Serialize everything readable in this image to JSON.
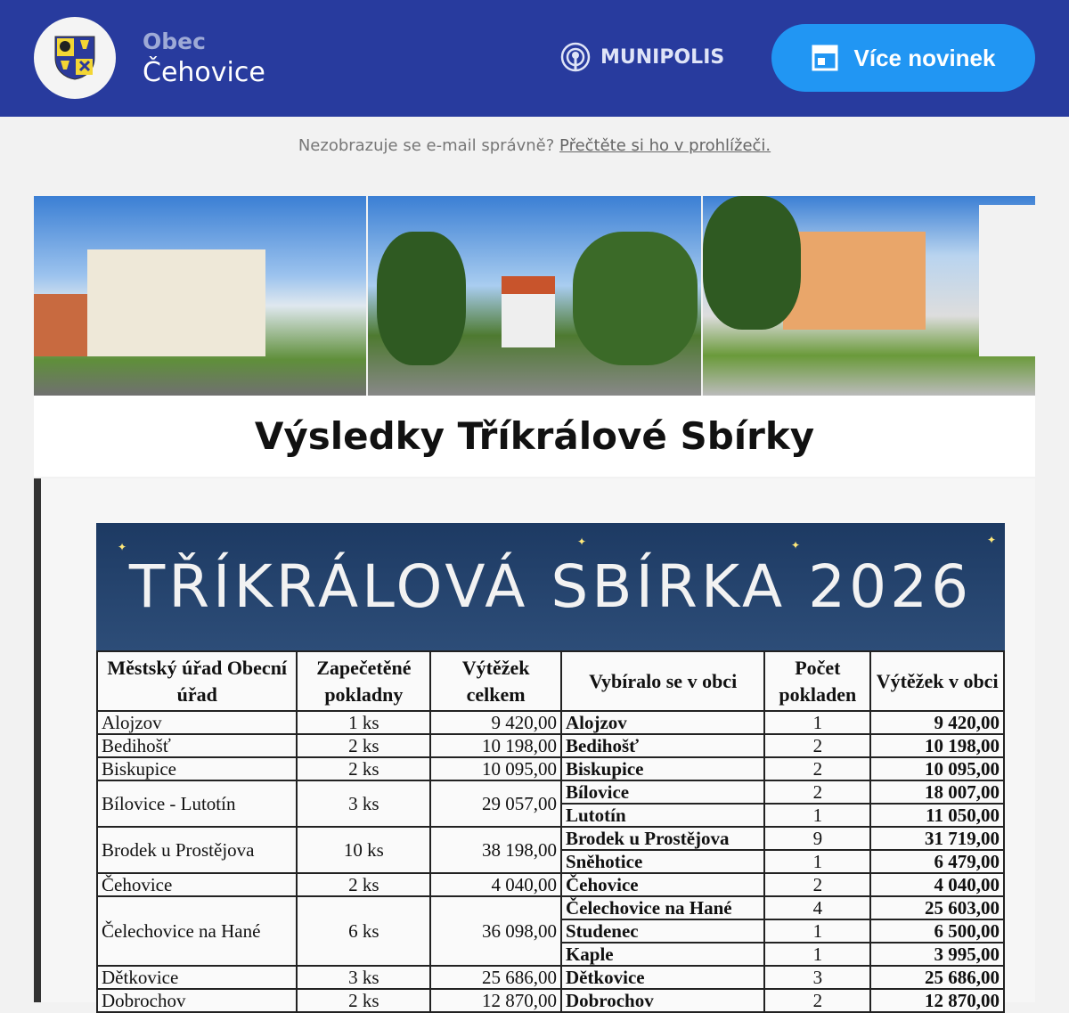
{
  "header": {
    "title_small": "Obec",
    "title_large": "Čehovice",
    "partner": "MUNIPOLIS",
    "more_button": "Více novinek",
    "colors": {
      "bg": "#283b9e",
      "button": "#2196f3"
    }
  },
  "notice": {
    "text": "Nezobrazuje se e-mail správně?",
    "link": "Přečtěte si ho v prohlížeči."
  },
  "article": {
    "title": "Výsledky Tříkrálové Sbírky"
  },
  "document": {
    "banner": "TŘÍKRÁLOVÁ SBÍRKA 2026",
    "columns": [
      "Městský úřad Obecní úřad",
      "Zapečetěné pokladny",
      "Výtěžek celkem",
      "Vybíralo se v obci",
      "Počet pokladen",
      "Výtěžek v obci"
    ],
    "groups": [
      {
        "office": "Alojzov",
        "seals": "1 ks",
        "total": "9 420,00",
        "villages": [
          [
            "Alojzov",
            "1",
            "9 420,00"
          ]
        ]
      },
      {
        "office": "Bedihošť",
        "seals": "2 ks",
        "total": "10 198,00",
        "villages": [
          [
            "Bedihošť",
            "2",
            "10 198,00"
          ]
        ]
      },
      {
        "office": "Biskupice",
        "seals": "2 ks",
        "total": "10 095,00",
        "villages": [
          [
            "Biskupice",
            "2",
            "10 095,00"
          ]
        ]
      },
      {
        "office": "Bílovice - Lutotín",
        "seals": "3 ks",
        "total": "29 057,00",
        "villages": [
          [
            "Bílovice",
            "2",
            "18 007,00"
          ],
          [
            "Lutotín",
            "1",
            "11 050,00"
          ]
        ]
      },
      {
        "office": "Brodek u Prostějova",
        "seals": "10 ks",
        "total": "38 198,00",
        "villages": [
          [
            "Brodek u Prostějova",
            "9",
            "31 719,00"
          ],
          [
            "Sněhotice",
            "1",
            "6 479,00"
          ]
        ]
      },
      {
        "office": "Čehovice",
        "seals": "2 ks",
        "total": "4 040,00",
        "villages": [
          [
            "Čehovice",
            "2",
            "4 040,00"
          ]
        ]
      },
      {
        "office": "Čelechovice na Hané",
        "seals": "6 ks",
        "total": "36 098,00",
        "villages": [
          [
            "Čelechovice na Hané",
            "4",
            "25 603,00"
          ],
          [
            "Studenec",
            "1",
            "6 500,00"
          ],
          [
            "Kaple",
            "1",
            "3 995,00"
          ]
        ]
      },
      {
        "office": "Dětkovice",
        "seals": "3 ks",
        "total": "25 686,00",
        "villages": [
          [
            "Dětkovice",
            "3",
            "25 686,00"
          ]
        ]
      },
      {
        "office": "Dobrochov",
        "seals": "2 ks",
        "total": "12 870,00",
        "villages": [
          [
            "Dobrochov",
            "2",
            "12 870,00"
          ]
        ]
      }
    ]
  }
}
